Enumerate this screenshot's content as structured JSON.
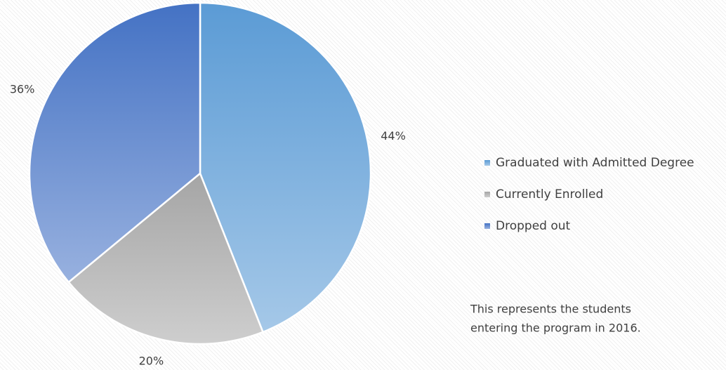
{
  "chart_data": {
    "type": "pie",
    "categories": [
      "Graduated with Admitted Degree",
      "Currently Enrolled",
      "Dropped out"
    ],
    "values": [
      44,
      20,
      36
    ],
    "value_labels": [
      "44%",
      "20%",
      "36%"
    ],
    "colors": [
      "#5b9bd5",
      "#a5a5a5",
      "#4472c4"
    ],
    "legend": "right",
    "annotation": [
      "This represents the students",
      "entering the program in 2016."
    ]
  }
}
